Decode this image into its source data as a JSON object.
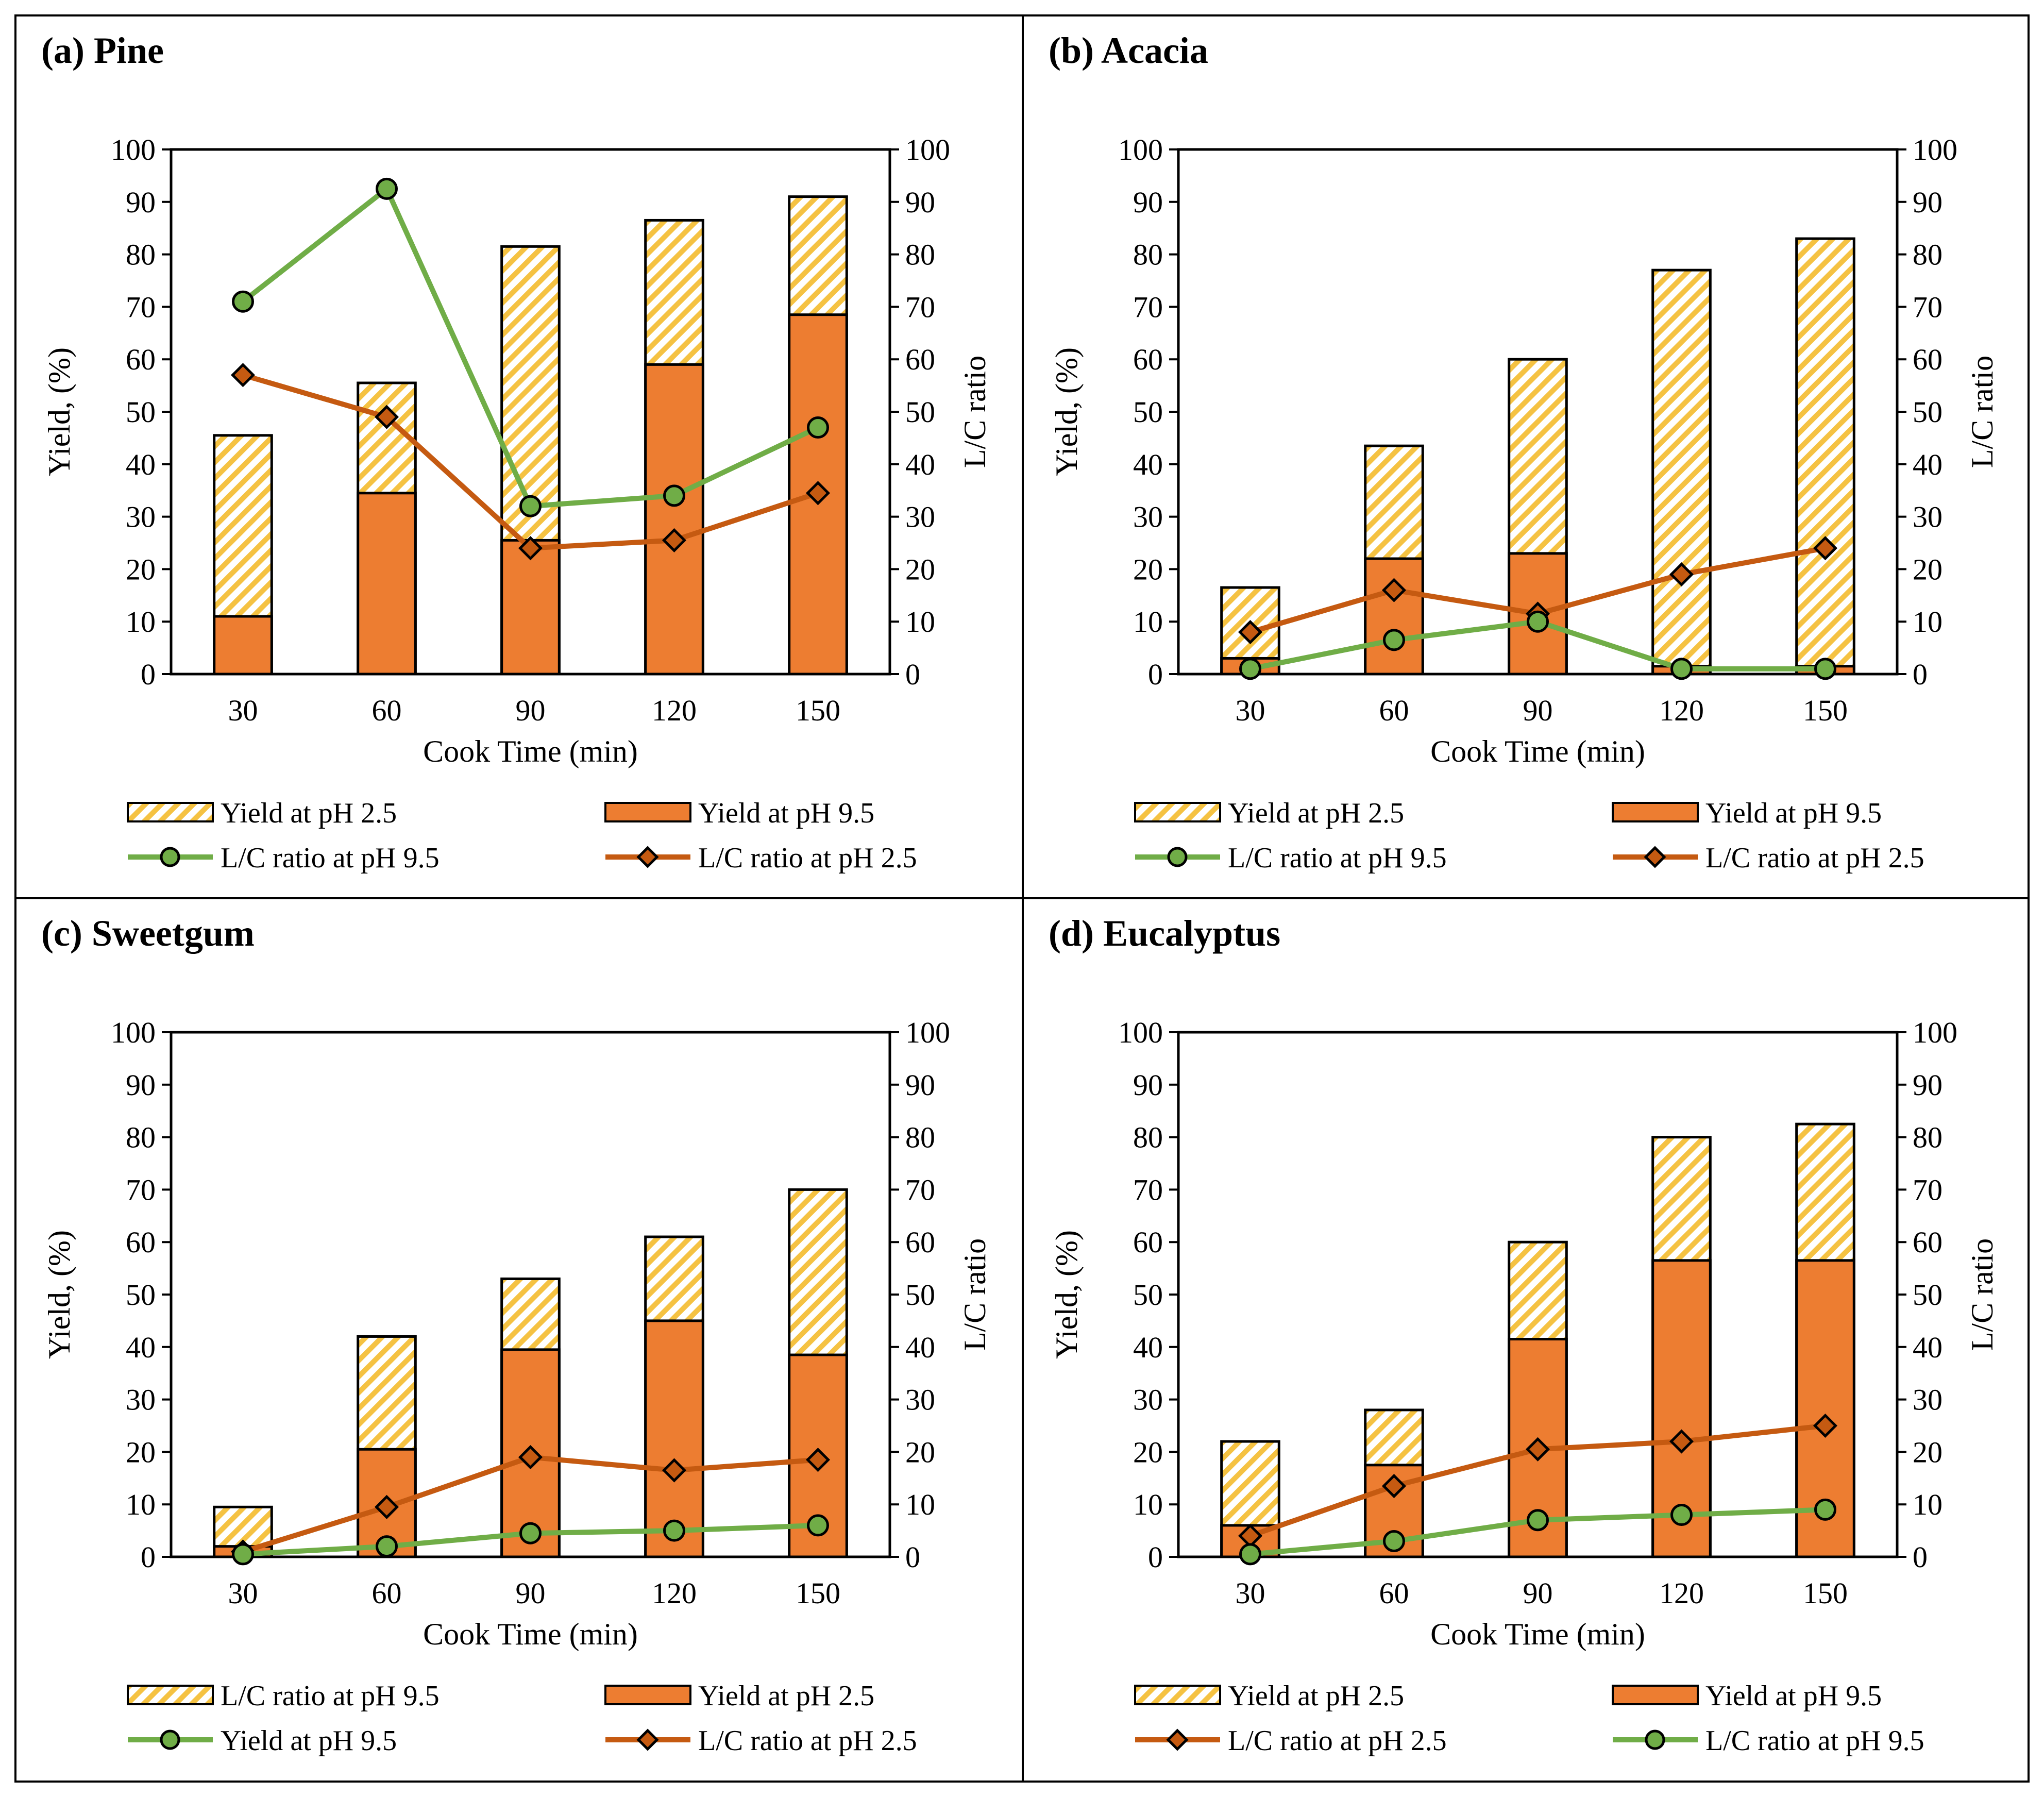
{
  "colors": {
    "bar_bottom": "#ED7D31",
    "bar_top_hatch_fg": "#F5C242",
    "bar_top_hatch_bg": "#FFFFFF",
    "line_green": "#70AD47",
    "line_brown": "#C55A11",
    "marker_brown": "#C55A11"
  },
  "chart_data": [
    {
      "panel_title": "(a) Pine",
      "type": "bar",
      "categories": [
        "30",
        "60",
        "90",
        "120",
        "150"
      ],
      "xlabel": "Cook Time (min)",
      "ylabel": "Yield, (%)",
      "y2label": "L/C ratio",
      "ylim": [
        0,
        100
      ],
      "y2lim": [
        0,
        100
      ],
      "yticks": [
        "0",
        "10",
        "20",
        "30",
        "40",
        "50",
        "60",
        "70",
        "80",
        "90",
        "100"
      ],
      "bar_bottom": [
        11,
        34.5,
        25.5,
        59,
        68.5
      ],
      "bar_top": [
        45.5,
        55.5,
        81.5,
        86.5,
        91
      ],
      "line_green": [
        71,
        92.5,
        32,
        34,
        47
      ],
      "line_brown": [
        57,
        49,
        24,
        25.5,
        34.5
      ],
      "legend": {
        "hatch": "Yield at pH 2.5",
        "bar": "Yield at pH  9.5",
        "green": "L/C ratio at pH 9.5",
        "brown": "L/C ratio at pH 2.5",
        "order": [
          "hatch",
          "bar",
          "green",
          "brown"
        ]
      }
    },
    {
      "panel_title": "(b) Acacia",
      "type": "bar",
      "categories": [
        "30",
        "60",
        "90",
        "120",
        "150"
      ],
      "xlabel": "Cook Time (min)",
      "ylabel": "Yield, (%)",
      "y2label": "L/C ratio",
      "ylim": [
        0,
        100
      ],
      "y2lim": [
        0,
        100
      ],
      "yticks": [
        "0",
        "10",
        "20",
        "30",
        "40",
        "50",
        "60",
        "70",
        "80",
        "90",
        "100"
      ],
      "bar_bottom": [
        3,
        22,
        23,
        1.5,
        1.5
      ],
      "bar_top": [
        16.5,
        43.5,
        60,
        77,
        83
      ],
      "line_green": [
        1,
        6.5,
        10,
        1,
        1
      ],
      "line_brown": [
        8,
        16,
        11.5,
        19,
        24
      ],
      "legend": {
        "hatch": "Yield at pH 2.5",
        "bar": "Yield at pH 9.5",
        "green": "L/C ratio at pH 9.5",
        "brown": "L/C ratio at pH 2.5",
        "order": [
          "hatch",
          "bar",
          "green",
          "brown"
        ]
      }
    },
    {
      "panel_title": "(c) Sweetgum",
      "type": "bar",
      "categories": [
        "30",
        "60",
        "90",
        "120",
        "150"
      ],
      "xlabel": "Cook Time (min)",
      "ylabel": "Yield, (%)",
      "y2label": "L/C ratio",
      "ylim": [
        0,
        100
      ],
      "y2lim": [
        0,
        100
      ],
      "yticks": [
        "0",
        "10",
        "20",
        "30",
        "40",
        "50",
        "60",
        "70",
        "80",
        "90",
        "100"
      ],
      "bar_bottom": [
        2,
        20.5,
        39.5,
        45,
        38.5
      ],
      "bar_top": [
        9.5,
        42,
        53,
        61,
        70
      ],
      "line_green": [
        0.5,
        2,
        4.5,
        5,
        6
      ],
      "line_brown": [
        1,
        9.5,
        19,
        16.5,
        18.5
      ],
      "legend": {
        "hatch": "L/C ratio at pH 9.5",
        "bar": "Yield at pH 2.5",
        "green": "Yield at pH  9.5",
        "brown": "L/C ratio at pH 2.5",
        "order": [
          "hatch",
          "bar",
          "green",
          "brown"
        ]
      }
    },
    {
      "panel_title": "(d) Eucalyptus",
      "type": "bar",
      "categories": [
        "30",
        "60",
        "90",
        "120",
        "150"
      ],
      "xlabel": "Cook Time (min)",
      "ylabel": "Yield, (%)",
      "y2label": "L/C ratio",
      "ylim": [
        0,
        100
      ],
      "y2lim": [
        0,
        100
      ],
      "yticks": [
        "0",
        "10",
        "20",
        "30",
        "40",
        "50",
        "60",
        "70",
        "80",
        "90",
        "100"
      ],
      "bar_bottom": [
        6,
        17.5,
        41.5,
        56.5,
        56.5
      ],
      "bar_top": [
        22,
        28,
        60,
        80,
        82.5
      ],
      "line_green": [
        0.5,
        3,
        7,
        8,
        9
      ],
      "line_brown": [
        4,
        13.5,
        20.5,
        22,
        25
      ],
      "legend": {
        "hatch": "Yield at pH 2.5",
        "bar": "Yield at pH 9.5",
        "brown": "L/C ratio at pH 2.5",
        "green": "L/C ratio at pH 9.5",
        "order": [
          "hatch",
          "bar",
          "brown",
          "green"
        ]
      }
    }
  ]
}
